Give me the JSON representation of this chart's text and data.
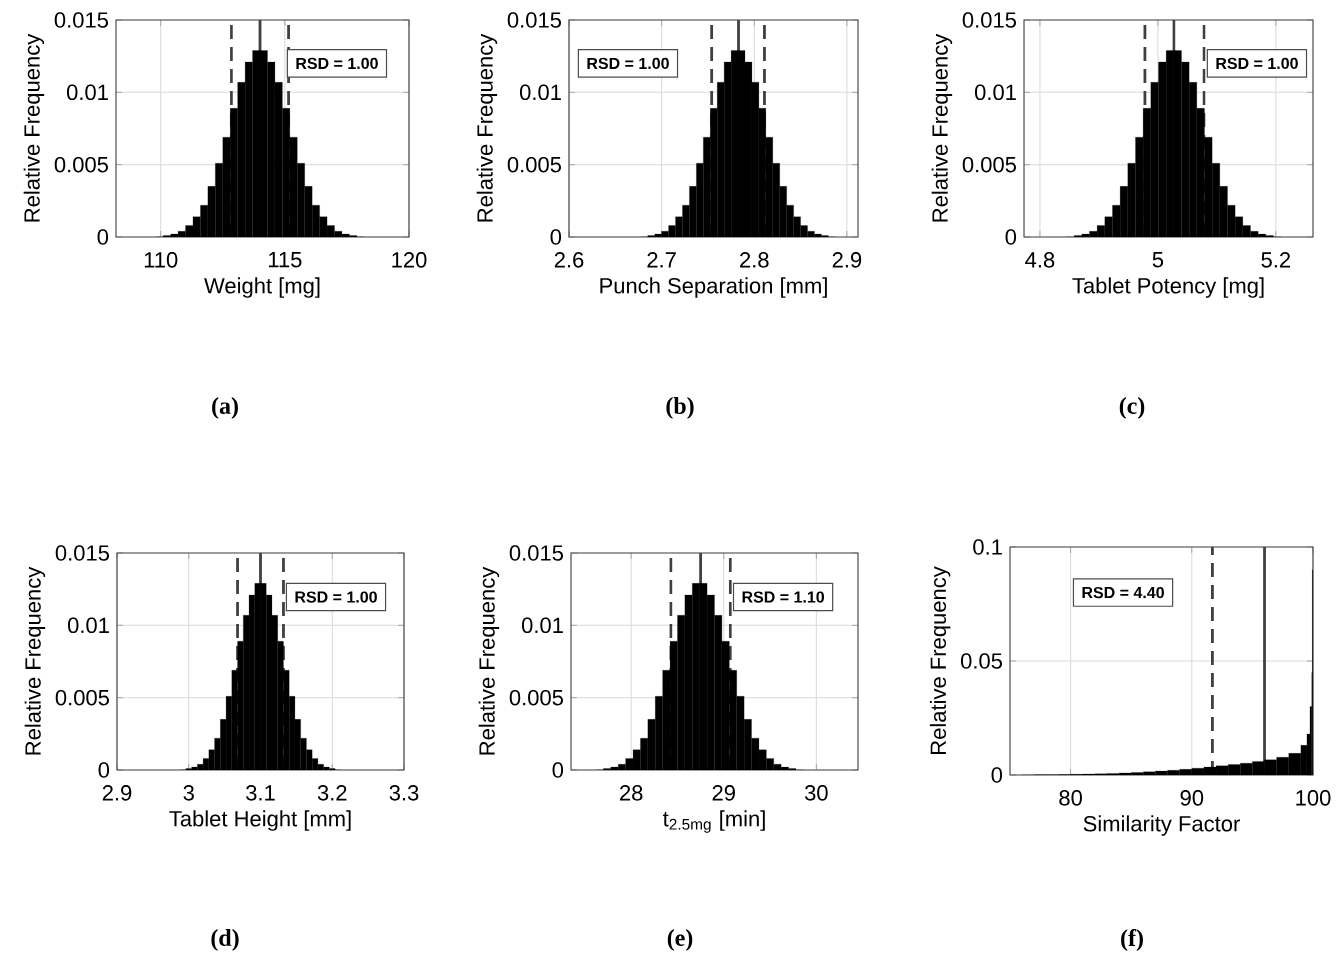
{
  "chart_data": [
    {
      "type": "histogram",
      "xlabel": "Weight [mg]",
      "ylabel": "Relative Frequency",
      "annotations": [
        "RSD = 1.00",
        "(a)"
      ],
      "color": "#000000",
      "grid": true,
      "bins": [
        109.8,
        110.1,
        110.4,
        110.7,
        111,
        111.3,
        111.6,
        111.9,
        112.2,
        112.5,
        112.8,
        113.1,
        113.4,
        113.7,
        114,
        114.3,
        114.6,
        114.9,
        115.2,
        115.5,
        115.8,
        116.1,
        116.4,
        116.7,
        117,
        117.3,
        117.6,
        117.9,
        118.2
      ],
      "values": [
        0,
        0.0001,
        0.0002,
        0.0004,
        0.0008,
        0.0014,
        0.0022,
        0.0035,
        0.0051,
        0.0069,
        0.0089,
        0.0107,
        0.0121,
        0.0129,
        0.0129,
        0.0121,
        0.0107,
        0.0089,
        0.0069,
        0.0051,
        0.0035,
        0.0022,
        0.0014,
        0.0008,
        0.0004,
        0.0002,
        0.0001,
        0
      ],
      "xlim": [
        108.2,
        120
      ],
      "ylim": [
        0,
        0.015
      ],
      "xticks": [
        110,
        115,
        120
      ],
      "yticks": [
        0,
        0.005,
        0.01,
        0.015
      ],
      "ref_lines": [
        {
          "axis": "x",
          "value": 112.85,
          "line_style": "dashed",
          "color": "#404040"
        },
        {
          "axis": "x",
          "value": 114,
          "line_style": "solid",
          "color": "#404040"
        },
        {
          "axis": "x",
          "value": 115.15,
          "line_style": "dashed",
          "color": "#404040"
        }
      ]
    },
    {
      "type": "histogram",
      "xlabel": "Punch Separation [mm]",
      "ylabel": "Relative Frequency",
      "annotations": [
        "RSD = 1.00",
        "(b)"
      ],
      "color": "#000000",
      "grid": true,
      "bins": [
        2.6775,
        2.685,
        2.6925,
        2.7,
        2.7075,
        2.715,
        2.7225,
        2.73,
        2.7375,
        2.745,
        2.7525,
        2.76,
        2.7675,
        2.775,
        2.7825,
        2.79,
        2.7975,
        2.805,
        2.8125,
        2.82,
        2.8275,
        2.835,
        2.8425,
        2.85,
        2.8575,
        2.865,
        2.8725,
        2.88,
        2.8875
      ],
      "values": [
        0,
        0.0001,
        0.0002,
        0.0004,
        0.0008,
        0.0014,
        0.0022,
        0.0035,
        0.0051,
        0.0069,
        0.0089,
        0.0107,
        0.0121,
        0.0129,
        0.0129,
        0.0121,
        0.0107,
        0.0089,
        0.0069,
        0.0051,
        0.0035,
        0.0022,
        0.0014,
        0.0008,
        0.0004,
        0.0002,
        0.0001,
        0
      ],
      "xlim": [
        2.6,
        2.912
      ],
      "ylim": [
        0,
        0.015
      ],
      "xticks": [
        2.6,
        2.7,
        2.8,
        2.9
      ],
      "yticks": [
        0,
        0.005,
        0.01,
        0.015
      ],
      "ref_lines": [
        {
          "axis": "x",
          "value": 2.754,
          "line_style": "dashed",
          "color": "#404040"
        },
        {
          "axis": "x",
          "value": 2.783,
          "line_style": "solid",
          "color": "#404040"
        },
        {
          "axis": "x",
          "value": 2.811,
          "line_style": "dashed",
          "color": "#404040"
        }
      ]
    },
    {
      "type": "histogram",
      "xlabel": "Tablet Potency [mg]",
      "ylabel": "Relative Frequency",
      "annotations": [
        "RSD = 1.00",
        "(c)"
      ],
      "color": "#000000",
      "grid": true,
      "bins": [
        4.845,
        4.858,
        4.871,
        4.884,
        4.897,
        4.91,
        4.923,
        4.936,
        4.949,
        4.962,
        4.975,
        4.988,
        5.001,
        5.014,
        5.027,
        5.04,
        5.053,
        5.066,
        5.079,
        5.092,
        5.105,
        5.118,
        5.131,
        5.144,
        5.157,
        5.17,
        5.183,
        5.196,
        5.209
      ],
      "values": [
        0,
        0.0001,
        0.0002,
        0.0004,
        0.0008,
        0.0014,
        0.0022,
        0.0035,
        0.0051,
        0.0069,
        0.0089,
        0.0107,
        0.0121,
        0.0129,
        0.0129,
        0.0121,
        0.0107,
        0.0089,
        0.0069,
        0.0051,
        0.0035,
        0.0022,
        0.0014,
        0.0008,
        0.0004,
        0.0002,
        0.0001,
        0
      ],
      "xlim": [
        4.773,
        5.263
      ],
      "ylim": [
        0,
        0.015
      ],
      "xticks": [
        4.8,
        5,
        5.2
      ],
      "yticks": [
        0,
        0.005,
        0.01,
        0.015
      ],
      "ref_lines": [
        {
          "axis": "x",
          "value": 4.978,
          "line_style": "dashed",
          "color": "#404040"
        },
        {
          "axis": "x",
          "value": 5.027,
          "line_style": "solid",
          "color": "#404040"
        },
        {
          "axis": "x",
          "value": 5.078,
          "line_style": "dashed",
          "color": "#404040"
        }
      ]
    },
    {
      "type": "histogram",
      "xlabel": "Tablet Height [mm]",
      "ylabel": "Relative Frequency",
      "annotations": [
        "RSD = 1.00",
        "(d)"
      ],
      "color": "#000000",
      "grid": true,
      "bins": [
        2.988,
        2.996,
        3.004,
        3.012,
        3.02,
        3.028,
        3.036,
        3.044,
        3.052,
        3.06,
        3.068,
        3.076,
        3.084,
        3.092,
        3.1,
        3.108,
        3.116,
        3.124,
        3.132,
        3.14,
        3.148,
        3.156,
        3.164,
        3.172,
        3.18,
        3.188,
        3.196,
        3.204,
        3.212
      ],
      "values": [
        0,
        0.0001,
        0.0002,
        0.0004,
        0.0008,
        0.0014,
        0.0022,
        0.0035,
        0.0051,
        0.0069,
        0.0089,
        0.0107,
        0.0121,
        0.0129,
        0.0129,
        0.0121,
        0.0107,
        0.0089,
        0.0069,
        0.0051,
        0.0035,
        0.0022,
        0.0014,
        0.0008,
        0.0004,
        0.0002,
        0.0001,
        0
      ],
      "xlim": [
        2.9,
        3.3
      ],
      "ylim": [
        0,
        0.015
      ],
      "xticks": [
        2.9,
        3,
        3.1,
        3.2,
        3.3
      ],
      "yticks": [
        0,
        0.005,
        0.01,
        0.015
      ],
      "ref_lines": [
        {
          "axis": "x",
          "value": 3.068,
          "line_style": "dashed",
          "color": "#404040"
        },
        {
          "axis": "x",
          "value": 3.1,
          "line_style": "solid",
          "color": "#404040"
        },
        {
          "axis": "x",
          "value": 3.132,
          "line_style": "dashed",
          "color": "#404040"
        }
      ]
    },
    {
      "type": "histogram",
      "xlabel": "t$_{2.5mg}$ [min]",
      "ylabel": "Relative Frequency",
      "annotations": [
        "RSD = 1.10",
        "(e)"
      ],
      "color": "#000000",
      "grid": true,
      "bins": [
        27.62,
        27.7,
        27.78,
        27.86,
        27.94,
        28.02,
        28.1,
        28.18,
        28.26,
        28.34,
        28.42,
        28.5,
        28.58,
        28.66,
        28.74,
        28.82,
        28.9,
        28.98,
        29.06,
        29.14,
        29.22,
        29.3,
        29.38,
        29.46,
        29.54,
        29.62,
        29.7,
        29.78,
        29.86
      ],
      "values": [
        0,
        0.0001,
        0.0002,
        0.0004,
        0.0008,
        0.0014,
        0.0022,
        0.0035,
        0.0051,
        0.0069,
        0.0089,
        0.0107,
        0.0121,
        0.0129,
        0.0129,
        0.0121,
        0.0107,
        0.0089,
        0.0069,
        0.0051,
        0.0035,
        0.0022,
        0.0014,
        0.0008,
        0.0004,
        0.0002,
        0.0001,
        0
      ],
      "xlim": [
        27.35,
        30.45
      ],
      "ylim": [
        0,
        0.015
      ],
      "xticks": [
        28,
        29,
        30
      ],
      "yticks": [
        0,
        0.005,
        0.01,
        0.015
      ],
      "ref_lines": [
        {
          "axis": "x",
          "value": 28.43,
          "line_style": "dashed",
          "color": "#404040"
        },
        {
          "axis": "x",
          "value": 28.75,
          "line_style": "solid",
          "color": "#404040"
        },
        {
          "axis": "x",
          "value": 29.07,
          "line_style": "dashed",
          "color": "#404040"
        }
      ]
    },
    {
      "type": "histogram",
      "xlabel": "Similarity Factor",
      "ylabel": "Relative Frequency",
      "annotations": [
        "RSD = 4.40",
        "(f)"
      ],
      "color": "#000000",
      "grid": true,
      "bins": [
        76,
        77,
        78,
        79,
        80,
        81,
        82,
        83,
        84,
        85,
        86,
        87,
        88,
        89,
        90,
        91,
        92,
        93,
        94,
        95,
        96,
        97,
        98,
        99,
        99.5,
        99.75,
        99.9,
        99.95,
        100
      ],
      "values": [
        0,
        0.0001,
        0.0001,
        0.0002,
        0.0003,
        0.0004,
        0.0005,
        0.0007,
        0.0009,
        0.0011,
        0.0014,
        0.0017,
        0.0021,
        0.0025,
        0.003,
        0.0035,
        0.004,
        0.0046,
        0.0052,
        0.0059,
        0.0067,
        0.0078,
        0.0095,
        0.013,
        0.018,
        0.03,
        0.045,
        0.09
      ],
      "xlim": [
        75,
        100
      ],
      "ylim": [
        0,
        0.1
      ],
      "xticks": [
        80,
        90,
        100
      ],
      "yticks": [
        0,
        0.05,
        0.1
      ],
      "ref_lines": [
        {
          "axis": "x",
          "value": 91.7,
          "line_style": "dashed",
          "color": "#404040"
        },
        {
          "axis": "x",
          "value": 96,
          "line_style": "solid",
          "color": "#404040"
        }
      ]
    }
  ]
}
